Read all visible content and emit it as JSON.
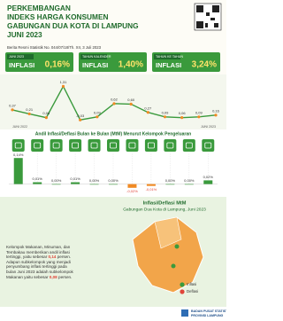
{
  "header": {
    "title_lines": [
      "PERKEMBANGAN",
      "INDEKS HARGA KONSUMEN",
      "GABUNGAN DUA KOTA DI LAMPUNG",
      "JUNI 2023"
    ],
    "subtitle": "Berita Resmi Statistik No. 044/07/18/Th. XII, 3 Juli 2023"
  },
  "indicators": [
    {
      "period": "JUNI 2023",
      "label": "INFLASI",
      "value": "0,16%"
    },
    {
      "period": "TAHUN KALENDER",
      "label": "INFLASI",
      "value": "1,40%"
    },
    {
      "period": "TAHUN KE TAHUN",
      "label": "INFLASI",
      "value": "3,24%"
    }
  ],
  "chart_data": [
    {
      "type": "line",
      "categories": [
        "JUNI 2022",
        null,
        null,
        null,
        null,
        null,
        null,
        null,
        null,
        null,
        null,
        null,
        "JUNI 2023"
      ],
      "values": [
        0.37,
        0.21,
        0.06,
        1.31,
        -0.03,
        0.09,
        0.62,
        0.6,
        0.27,
        0.09,
        0.06,
        0.09,
        0.16
      ],
      "value_labels": [
        "0,37",
        "0,21",
        "0,06",
        "1,31",
        "-0,03",
        "0,09",
        "0,62",
        "0,60",
        "0,27",
        "0,09",
        "0,06",
        "0,09",
        "0,16"
      ],
      "color": "#3a9a3c",
      "point_color": "#f08a24",
      "ylim": [
        -0.2,
        1.5
      ]
    },
    {
      "type": "bar",
      "title": "Andil Inflasi/Deflasi Bulan ke Bulan (MtM) Menurut Kelompok Pengeluaran",
      "categories": [
        null,
        null,
        null,
        null,
        null,
        null,
        null,
        null,
        null,
        null,
        null
      ],
      "values": [
        0.14,
        0.01,
        0.0,
        0.01,
        0.0,
        0.0,
        -0.02,
        -0.01,
        0.0,
        0.0,
        0.02
      ],
      "value_labels": [
        "0,14%",
        "0,01%",
        "0,00%",
        "0,01%",
        "0,00%",
        "0,00%",
        "-0,02%",
        "-0,01%",
        "0,00%",
        "0,00%",
        "0,02%"
      ],
      "color": "#3a9a3c",
      "negative_color": "#f08a24",
      "ylim": [
        -0.04,
        0.16
      ]
    }
  ],
  "map": {
    "title_lines": [
      "Inflasi/Deflasi MtM",
      "Gabungan Dua Kota di Lampung, Juni 2023"
    ],
    "legend": [
      {
        "name": "Inflasi",
        "color": "#3a9a3c"
      },
      {
        "name": "Deflasi",
        "color": "#e0453a"
      }
    ]
  },
  "note": [
    "Kelompok Makanan, Minuman, dan Tembakau memberikan andil inflasi tertinggi, yaitu sebesar ",
    "0,14",
    " persen. Adapun subkelompok yang menjadi penyumbang inflasi tertinggi pada bulan Juni 2023 adalah subkelompok Makanan yaitu sebesar ",
    "0,08",
    " persen."
  ],
  "footer": [
    "BADAN PUSAT STATISTIK",
    "PROVINSI LAMPUNG"
  ]
}
